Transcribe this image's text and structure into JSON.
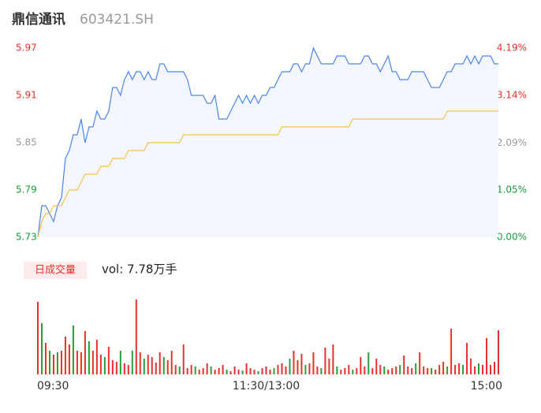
{
  "title": "鼎信通讯",
  "code": "603421.SH",
  "chart_data": {
    "type": "line",
    "categories": [
      "09:30",
      null,
      null,
      null,
      null,
      null,
      null,
      null,
      null,
      null,
      null,
      null,
      null,
      null,
      null,
      null,
      null,
      null,
      null,
      null,
      null,
      null,
      null,
      null,
      null,
      null,
      null,
      null,
      null,
      null,
      null,
      null,
      null,
      null,
      null,
      null,
      null,
      null,
      null,
      null,
      null,
      null,
      null,
      null,
      null,
      null,
      null,
      null,
      null,
      null,
      null,
      null,
      null,
      null,
      null,
      null,
      null,
      null,
      "11:30/13:00",
      null,
      null,
      null,
      null,
      null,
      null,
      null,
      null,
      null,
      null,
      null,
      null,
      null,
      null,
      null,
      null,
      null,
      null,
      null,
      null,
      null,
      null,
      null,
      null,
      null,
      null,
      null,
      null,
      null,
      null,
      null,
      null,
      null,
      null,
      null,
      null,
      null,
      null,
      null,
      null,
      null,
      null,
      null,
      null,
      null,
      null,
      null,
      null,
      null,
      null,
      null,
      null,
      null,
      null,
      null,
      null,
      null,
      null,
      "15:00"
    ],
    "series": [
      {
        "color": "#4a86e8",
        "values": [
          5.73,
          5.77,
          5.77,
          5.76,
          5.75,
          5.77,
          5.78,
          5.83,
          5.84,
          5.86,
          5.86,
          5.88,
          5.85,
          5.87,
          5.87,
          5.89,
          5.88,
          5.88,
          5.89,
          5.92,
          5.92,
          5.91,
          5.93,
          5.94,
          5.93,
          5.94,
          5.94,
          5.93,
          5.94,
          5.93,
          5.93,
          5.95,
          5.95,
          5.94,
          5.94,
          5.94,
          5.94,
          5.94,
          5.93,
          5.91,
          5.91,
          5.91,
          5.91,
          5.9,
          5.9,
          5.91,
          5.88,
          5.88,
          5.88,
          5.89,
          5.9,
          5.91,
          5.9,
          5.91,
          5.9,
          5.91,
          5.9,
          5.91,
          5.91,
          5.92,
          5.92,
          5.93,
          5.94,
          5.94,
          5.94,
          5.95,
          5.95,
          5.94,
          5.95,
          5.95,
          5.97,
          5.96,
          5.95,
          5.95,
          5.95,
          5.95,
          5.96,
          5.96,
          5.96,
          5.95,
          5.95,
          5.95,
          5.95,
          5.96,
          5.96,
          5.95,
          5.95,
          5.94,
          5.95,
          5.96,
          5.94,
          5.94,
          5.93,
          5.93,
          5.93,
          5.94,
          5.94,
          5.94,
          5.94,
          5.93,
          5.92,
          5.92,
          5.92,
          5.93,
          5.94,
          5.94,
          5.95,
          5.95,
          5.95,
          5.96,
          5.95,
          5.96,
          5.95,
          5.96,
          5.96,
          5.96,
          5.95,
          5.95
        ]
      },
      {
        "color": "#f5c24c",
        "values": [
          5.73,
          5.75,
          5.76,
          5.76,
          5.77,
          5.77,
          5.77,
          5.78,
          5.79,
          5.79,
          5.79,
          5.8,
          5.81,
          5.81,
          5.81,
          5.81,
          5.82,
          5.82,
          5.82,
          5.83,
          5.83,
          5.83,
          5.83,
          5.84,
          5.84,
          5.84,
          5.84,
          5.84,
          5.85,
          5.85,
          5.85,
          5.85,
          5.85,
          5.85,
          5.85,
          5.85,
          5.85,
          5.86,
          5.86,
          5.86,
          5.86,
          5.86,
          5.86,
          5.86,
          5.86,
          5.86,
          5.86,
          5.86,
          5.86,
          5.86,
          5.86,
          5.86,
          5.86,
          5.86,
          5.86,
          5.86,
          5.86,
          5.86,
          5.86,
          5.86,
          5.86,
          5.86,
          5.87,
          5.87,
          5.87,
          5.87,
          5.87,
          5.87,
          5.87,
          5.87,
          5.87,
          5.87,
          5.87,
          5.87,
          5.87,
          5.87,
          5.87,
          5.87,
          5.87,
          5.87,
          5.88,
          5.88,
          5.88,
          5.88,
          5.88,
          5.88,
          5.88,
          5.88,
          5.88,
          5.88,
          5.88,
          5.88,
          5.88,
          5.88,
          5.88,
          5.88,
          5.88,
          5.88,
          5.88,
          5.88,
          5.88,
          5.88,
          5.88,
          5.88,
          5.89,
          5.89,
          5.89,
          5.89,
          5.89,
          5.89,
          5.89,
          5.89,
          5.89,
          5.89,
          5.89,
          5.89,
          5.89,
          5.89
        ]
      }
    ],
    "area_color": "#f3f6fd",
    "ylim": [
      5.73,
      5.97
    ],
    "yticks": [
      5.73,
      5.79,
      5.85,
      5.91,
      5.97
    ],
    "ytick_colors": [
      "#1a9c3a",
      "#1a9c3a",
      "#999999",
      "#e8302f",
      "#e8302f"
    ],
    "y2lim": [
      0,
      4.19
    ],
    "y2ticks": [
      {
        "value": 0,
        "label": "0.00%"
      },
      {
        "value": 1.05,
        "label": "1.05%"
      },
      {
        "value": 2.09,
        "label": "2.09%"
      },
      {
        "value": 3.14,
        "label": "3.14%"
      },
      {
        "value": 4.19,
        "label": "4.19%"
      }
    ],
    "volume": {
      "label": "日成交量",
      "summary": "vol: 7.78万手",
      "ylim": [
        0,
        100
      ],
      "values": [
        92,
        65,
        40,
        30,
        25,
        28,
        30,
        48,
        38,
        62,
        30,
        28,
        55,
        42,
        30,
        44,
        25,
        22,
        35,
        18,
        16,
        30,
        14,
        12,
        30,
        95,
        28,
        20,
        25,
        22,
        15,
        28,
        22,
        18,
        30,
        12,
        10,
        38,
        8,
        12,
        10,
        6,
        8,
        14,
        10,
        6,
        8,
        12,
        6,
        4,
        10,
        6,
        5,
        14,
        8,
        6,
        4,
        8,
        10,
        6,
        8,
        12,
        14,
        10,
        20,
        30,
        18,
        26,
        12,
        14,
        28,
        10,
        8,
        34,
        20,
        38,
        10,
        6,
        8,
        12,
        6,
        8,
        22,
        10,
        28,
        8,
        20,
        12,
        10,
        6,
        8,
        10,
        12,
        24,
        10,
        8,
        14,
        28,
        10,
        8,
        8,
        6,
        12,
        16,
        10,
        58,
        12,
        14,
        12,
        40,
        20,
        10,
        14,
        12,
        46,
        12,
        16,
        56
      ],
      "colors": [
        "#e8302f",
        "#2a9d3a",
        "#e8302f",
        "#2a9d3a",
        "#e8302f",
        "#2a9d3a",
        "#e8302f",
        "#e8302f",
        "#e8302f",
        "#2a9d3a",
        "#e8302f",
        "#e8302f",
        "#e8302f",
        "#2a9d3a",
        "#e8302f",
        "#e8302f",
        "#e8302f",
        "#2a9d3a",
        "#e8302f",
        "#e8302f",
        "#e8302f",
        "#2a9d3a",
        "#e8302f",
        "#e8302f",
        "#2a9d3a",
        "#e8302f",
        "#e8302f",
        "#2a9d3a",
        "#e8302f",
        "#e8302f",
        "#e8302f",
        "#e8302f",
        "#2a9d3a",
        "#e8302f",
        "#e8302f",
        "#e8302f",
        "#2a9d3a",
        "#e8302f",
        "#e8302f",
        "#e8302f",
        "#2a9d3a",
        "#e8302f",
        "#e8302f",
        "#e8302f",
        "#2a9d3a",
        "#e8302f",
        "#e8302f",
        "#e8302f",
        "#2a9d3a",
        "#e8302f",
        "#e8302f",
        "#e8302f",
        "#2a9d3a",
        "#e8302f",
        "#e8302f",
        "#e8302f",
        "#2a9d3a",
        "#e8302f",
        "#e8302f",
        "#e8302f",
        "#2a9d3a",
        "#e8302f",
        "#e8302f",
        "#e8302f",
        "#2a9d3a",
        "#e8302f",
        "#e8302f",
        "#e8302f",
        "#2a9d3a",
        "#e8302f",
        "#e8302f",
        "#e8302f",
        "#2a9d3a",
        "#e8302f",
        "#e8302f",
        "#e8302f",
        "#2a9d3a",
        "#e8302f",
        "#e8302f",
        "#e8302f",
        "#2a9d3a",
        "#e8302f",
        "#e8302f",
        "#e8302f",
        "#2a9d3a",
        "#e8302f",
        "#e8302f",
        "#e8302f",
        "#2a9d3a",
        "#e8302f",
        "#e8302f",
        "#e8302f",
        "#2a9d3a",
        "#e8302f",
        "#e8302f",
        "#e8302f",
        "#2a9d3a",
        "#e8302f",
        "#e8302f",
        "#e8302f",
        "#2a9d3a",
        "#e8302f",
        "#e8302f",
        "#e8302f",
        "#2a9d3a",
        "#e8302f",
        "#e8302f",
        "#e8302f",
        "#2a9d3a",
        "#e8302f",
        "#e8302f",
        "#e8302f",
        "#2a9d3a",
        "#e8302f",
        "#e8302f",
        "#e8302f",
        "#e8302f",
        "#e8302f"
      ]
    }
  }
}
